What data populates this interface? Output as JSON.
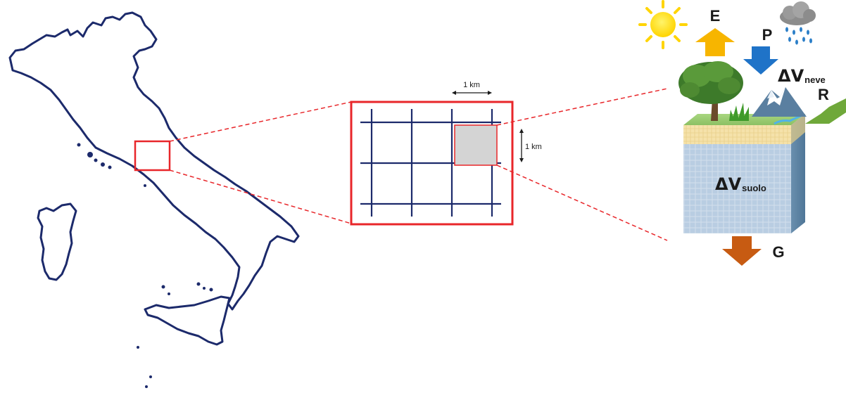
{
  "diagram": {
    "scale_x_label": "1 km",
    "scale_y_label": "1 km",
    "flux_labels": {
      "evapotranspiration": "E",
      "precipitation": "P",
      "snow_symbol": "ΔV",
      "snow_subscript": "neve",
      "runoff": "R",
      "soil_symbol": "ΔV",
      "soil_subscript": "suolo",
      "groundwater": "G"
    },
    "icons": [
      "sun-icon",
      "rain-cloud-icon",
      "tree-icon",
      "mountain-icon",
      "grass-icon"
    ],
    "colors": {
      "map_outline": "#1c2a6b",
      "highlight_red": "#e8262a",
      "grid_line": "#1c2a6b",
      "cell_fill": "#d4d4d4",
      "arrow_E": "#f7b500",
      "arrow_P": "#1f73c8",
      "arrow_R": "#6fa83a",
      "arrow_G": "#c75b12",
      "soil_front": "#b6cbe0",
      "surface_top": "#9ccc74",
      "surface_band": "#f3dfa4"
    }
  }
}
